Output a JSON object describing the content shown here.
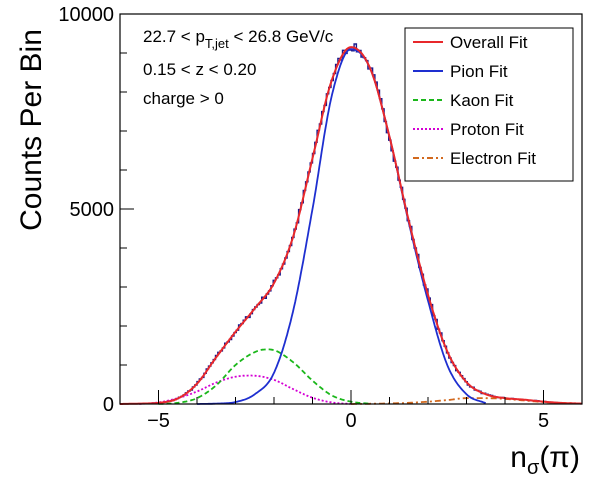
{
  "chart_data": {
    "type": "line",
    "xlabel": "nσ(π)",
    "ylabel": "Counts Per Bin",
    "xlim": [
      -6,
      6
    ],
    "ylim": [
      0,
      10000
    ],
    "x_ticks": [
      -5,
      0,
      5
    ],
    "y_ticks": [
      0,
      5000,
      10000
    ],
    "x_tick_labels": [
      "−5",
      "0",
      "5"
    ],
    "y_tick_labels": [
      "0",
      "5000",
      "10000"
    ],
    "grid": false,
    "legend_position": "top-right",
    "annotations": [
      {
        "id": "pt",
        "text": "22.7 < p_T,jet < 26.8 GeV/c",
        "parts": [
          "22.7 < p",
          "T,jet",
          " < 26.8 GeV/c"
        ]
      },
      {
        "id": "z",
        "text": "0.15 < z < 0.20"
      },
      {
        "id": "charge",
        "text": "charge > 0"
      }
    ],
    "series": [
      {
        "name": "Overall Fit",
        "color": "#e8282b",
        "style": "solid",
        "x": [
          -6.0,
          -5.5,
          -5.0,
          -4.5,
          -4.0,
          -3.5,
          -3.0,
          -2.5,
          -2.0,
          -1.5,
          -1.0,
          -0.5,
          0.0,
          0.5,
          1.0,
          1.5,
          2.0,
          2.5,
          3.0,
          3.5,
          4.0,
          4.5,
          5.0,
          5.5,
          6.0
        ],
        "y": [
          0,
          10,
          30,
          140,
          520,
          1200,
          1850,
          2450,
          3100,
          4300,
          6300,
          8300,
          9150,
          8600,
          6850,
          4700,
          2800,
          1350,
          560,
          250,
          150,
          110,
          60,
          25,
          10
        ]
      },
      {
        "name": "Pion Fit",
        "color": "#1e2fd0",
        "style": "solid",
        "x": [
          -4.0,
          -3.5,
          -3.0,
          -2.5,
          -2.0,
          -1.5,
          -1.0,
          -0.5,
          0.0,
          0.5,
          1.0,
          1.5,
          2.0,
          2.5,
          3.0,
          3.5
        ],
        "y": [
          0,
          10,
          50,
          250,
          800,
          2400,
          5000,
          7900,
          9100,
          8600,
          6850,
          4650,
          2650,
          1000,
          250,
          20
        ]
      },
      {
        "name": "Kaon Fit",
        "color": "#1bb71b",
        "style": "dashed",
        "x": [
          -5.0,
          -4.5,
          -4.0,
          -3.5,
          -3.0,
          -2.5,
          -2.2,
          -2.0,
          -1.5,
          -1.0,
          -0.5,
          0.0,
          0.5
        ],
        "y": [
          0,
          30,
          150,
          480,
          1000,
          1330,
          1400,
          1380,
          1070,
          600,
          220,
          60,
          5
        ]
      },
      {
        "name": "Proton Fit",
        "color": "#d400d4",
        "style": "dotted",
        "x": [
          -5.5,
          -5.0,
          -4.5,
          -4.0,
          -3.5,
          -3.0,
          -2.6,
          -2.0,
          -1.5,
          -1.0,
          -0.5,
          0.0
        ],
        "y": [
          0,
          40,
          150,
          320,
          550,
          700,
          730,
          620,
          380,
          160,
          40,
          0
        ]
      },
      {
        "name": "Electron Fit",
        "color": "#d2691e",
        "style": "dashdot",
        "x": [
          0.0,
          1.0,
          1.5,
          2.0,
          2.5,
          3.0,
          3.5,
          4.0,
          4.5,
          5.0,
          6.0
        ],
        "y": [
          0,
          15,
          30,
          60,
          100,
          150,
          150,
          130,
          90,
          50,
          10
        ]
      }
    ]
  }
}
